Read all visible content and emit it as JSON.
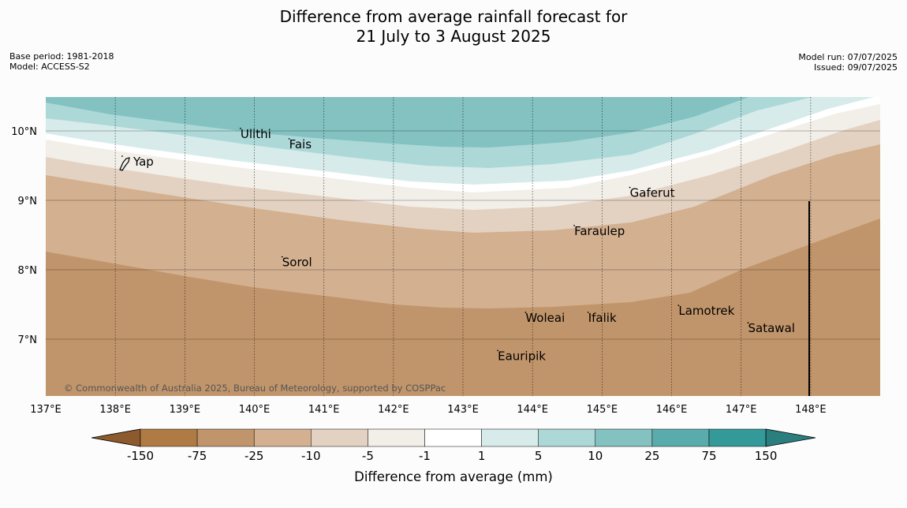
{
  "header": {
    "title_line1": "Difference from average rainfall forecast for",
    "title_line2": "21 July to 3 August 2025",
    "base_period": "Base period: 1981-2018",
    "model": "Model: ACCESS-S2",
    "model_run": "Model run: 07/07/2025",
    "issued": "Issued: 09/07/2025"
  },
  "map": {
    "lon_labels": [
      "137°E",
      "138°E",
      "139°E",
      "140°E",
      "141°E",
      "142°E",
      "143°E",
      "144°E",
      "145°E",
      "146°E",
      "147°E",
      "148°E"
    ],
    "lat_labels": [
      "10°N",
      "9°N",
      "8°N",
      "7°N"
    ],
    "places": [
      {
        "name": "Ulithi",
        "lon": 139.8,
        "lat": 9.9
      },
      {
        "name": "Fais",
        "lon": 140.5,
        "lat": 9.75
      },
      {
        "name": "Yap",
        "lon": 138.1,
        "lat": 9.5
      },
      {
        "name": "Gaferut",
        "lon": 145.4,
        "lat": 9.05
      },
      {
        "name": "Faraulep",
        "lon": 144.6,
        "lat": 8.5
      },
      {
        "name": "Sorol",
        "lon": 140.4,
        "lat": 8.05
      },
      {
        "name": "Lamotrek",
        "lon": 146.1,
        "lat": 7.35
      },
      {
        "name": "Woleai",
        "lon": 143.9,
        "lat": 7.25
      },
      {
        "name": "Ifalik",
        "lon": 144.8,
        "lat": 7.25
      },
      {
        "name": "Satawal",
        "lon": 147.1,
        "lat": 7.1
      },
      {
        "name": "Eauripik",
        "lon": 143.5,
        "lat": 6.7
      }
    ],
    "copyright": "© Commonwealth of Australia 2025, Bureau of Meteorology, supported by COSPPac"
  },
  "legend": {
    "title": "Difference from average (mm)",
    "tick_labels": [
      "-150",
      "-75",
      "-25",
      "-10",
      "-5",
      "-1",
      "1",
      "5",
      "10",
      "25",
      "75",
      "150"
    ],
    "colors": [
      "#8c5a2c",
      "#b07a45",
      "#c1956b",
      "#d3b090",
      "#e3d2c2",
      "#f2eee8",
      "#ffffff",
      "#d6ebea",
      "#add8d8",
      "#83c2c1",
      "#5aacac",
      "#339999",
      "#2a7f7e"
    ]
  },
  "chart_data": {
    "type": "heatmap",
    "variable": "Difference from average rainfall (mm)",
    "lon_range": [
      137,
      149
    ],
    "lat_range": [
      6.2,
      10.5
    ],
    "category_breaks": [
      -150,
      -75,
      -25,
      -10,
      -5,
      -1,
      1,
      5,
      10,
      25,
      75,
      150
    ],
    "zones": [
      {
        "range": "-75 to -25",
        "area": "south of ~8.2°N west, rising to ~8.8°N east"
      },
      {
        "range": "-25 to -10",
        "area": "central band"
      },
      {
        "range": "-10 to -5",
        "area": "band near 9°N"
      },
      {
        "range": "-5 to -1",
        "area": "narrow band ~9.4–9.7°N"
      },
      {
        "range": "-1 to 1",
        "area": "thin band"
      },
      {
        "range": "1 to 5",
        "area": "north, ~9.8°N"
      },
      {
        "range": "5 to 10",
        "area": "north, ~10°N"
      },
      {
        "range": "10 to 25",
        "area": "far north centre"
      }
    ]
  }
}
